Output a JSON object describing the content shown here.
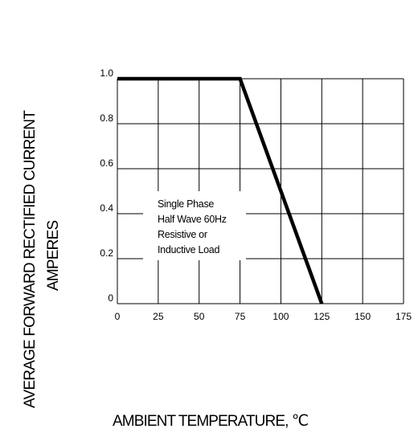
{
  "chart_data": {
    "type": "line",
    "ylabel_line1": "AVERAGE FORWARD RECTIFIED CURRENT",
    "ylabel_line2": "AMPERES",
    "xlabel": "AMBIENT TEMPERATURE, ℃",
    "x_ticks": [
      "0",
      "25",
      "50",
      "75",
      "100",
      "125",
      "150",
      "175"
    ],
    "y_ticks": [
      "0",
      "0.2",
      "0.4",
      "0.6",
      "0.8",
      "1.0"
    ],
    "xlim": [
      0,
      175
    ],
    "ylim": [
      0,
      1.0
    ],
    "grid": true,
    "annotation": [
      "Single Phase",
      "Half Wave 60Hz",
      "Resistive or",
      "Inductive Load"
    ],
    "series": [
      {
        "x": [
          0,
          75,
          125
        ],
        "y": [
          1.0,
          1.0,
          0
        ]
      }
    ]
  }
}
